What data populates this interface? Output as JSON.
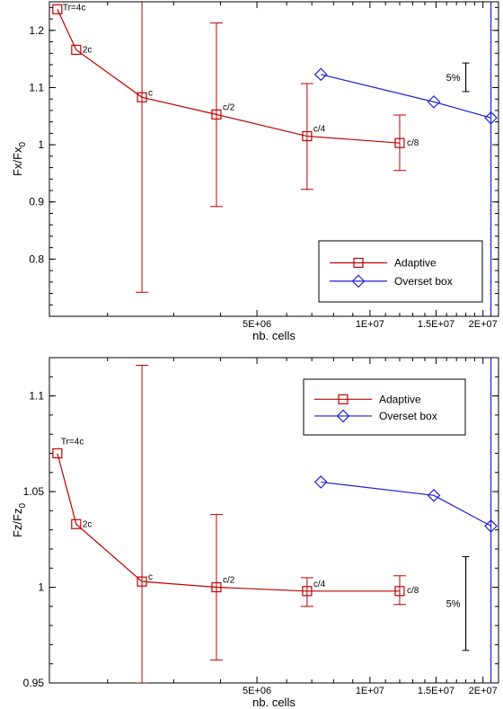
{
  "colors": {
    "adaptive": "#c00000",
    "overset": "#1f1fd8",
    "axis": "#000000",
    "background": "#ffffff"
  },
  "chart_data": [
    {
      "type": "line",
      "xscale": "log",
      "xlabel": "nb. cells",
      "ylabel": {
        "base": "Fx/Fx",
        "sub": "0"
      },
      "xlim": [
        1400000,
        22000000
      ],
      "ylim": [
        0.7,
        1.25
      ],
      "xticks": [
        {
          "value": 5000000,
          "label": "5E+06"
        },
        {
          "value": 10000000,
          "label": "1E+07"
        },
        {
          "value": 15000000,
          "label": "1.5E+07"
        },
        {
          "value": 20000000,
          "label": "2E+07"
        }
      ],
      "yticks": [
        {
          "value": 0.8,
          "label": "0.8"
        },
        {
          "value": 0.9,
          "label": "0.9"
        },
        {
          "value": 1.0,
          "label": "1"
        },
        {
          "value": 1.1,
          "label": "1.1"
        },
        {
          "value": 1.2,
          "label": "1.2"
        }
      ],
      "grid": false,
      "legend_position": "bottom-right",
      "vertical_line_x": 21000000,
      "scale_bar": {
        "label": "5%",
        "from": 1.093,
        "to": 1.143,
        "x": 18000000
      },
      "series": [
        {
          "name": "Adaptive",
          "marker": "square",
          "color": "#c00000",
          "x": [
            1470000,
            1650000,
            2470000,
            3900000,
            6800000,
            12000000
          ],
          "y": [
            1.237,
            1.166,
            1.083,
            1.053,
            1.015,
            1.003
          ],
          "error_low": [
            null,
            null,
            0.742,
            0.892,
            0.922,
            0.955
          ],
          "error_high": [
            null,
            null,
            1.27,
            1.213,
            1.107,
            1.052
          ],
          "point_labels": [
            "Tr=4c",
            "2c",
            "c",
            "c/2",
            "c/4",
            "c/8"
          ]
        },
        {
          "name": "Overset box",
          "marker": "diamond",
          "color": "#1f1fd8",
          "x": [
            7400000,
            14800000,
            21000000
          ],
          "y": [
            1.123,
            1.075,
            1.047
          ]
        }
      ]
    },
    {
      "type": "line",
      "xscale": "log",
      "xlabel": "nb. cells",
      "ylabel": {
        "base": "Fz/Fz",
        "sub": "0"
      },
      "xlim": [
        1400000,
        22000000
      ],
      "ylim": [
        0.95,
        1.12
      ],
      "xticks": [
        {
          "value": 5000000,
          "label": "5E+06"
        },
        {
          "value": 10000000,
          "label": "1E+07"
        },
        {
          "value": 15000000,
          "label": "1.5E+07"
        },
        {
          "value": 20000000,
          "label": "2E+07"
        }
      ],
      "yticks": [
        {
          "value": 0.95,
          "label": "0.95"
        },
        {
          "value": 1.0,
          "label": "1"
        },
        {
          "value": 1.05,
          "label": "1.05"
        },
        {
          "value": 1.1,
          "label": "1.1"
        }
      ],
      "grid": false,
      "legend_position": "top-right",
      "vertical_line_x": 21000000,
      "scale_bar": {
        "label": "5%",
        "from": 0.967,
        "to": 1.016,
        "x": 18000000
      },
      "series": [
        {
          "name": "Adaptive",
          "marker": "square",
          "color": "#c00000",
          "x": [
            1470000,
            1650000,
            2470000,
            3900000,
            6800000,
            12000000
          ],
          "y": [
            1.07,
            1.033,
            1.003,
            1.0,
            0.998,
            0.998
          ],
          "error_low": [
            null,
            null,
            0.95,
            0.962,
            0.99,
            0.991
          ],
          "error_high": [
            null,
            null,
            1.116,
            1.038,
            1.005,
            1.006
          ],
          "point_labels": [
            "Tr=4c",
            "2c",
            "c",
            "c/2",
            "c/4",
            "c/8"
          ]
        },
        {
          "name": "Overset box",
          "marker": "diamond",
          "color": "#1f1fd8",
          "x": [
            7400000,
            14800000,
            21000000
          ],
          "y": [
            1.055,
            1.048,
            1.032
          ]
        }
      ]
    }
  ]
}
